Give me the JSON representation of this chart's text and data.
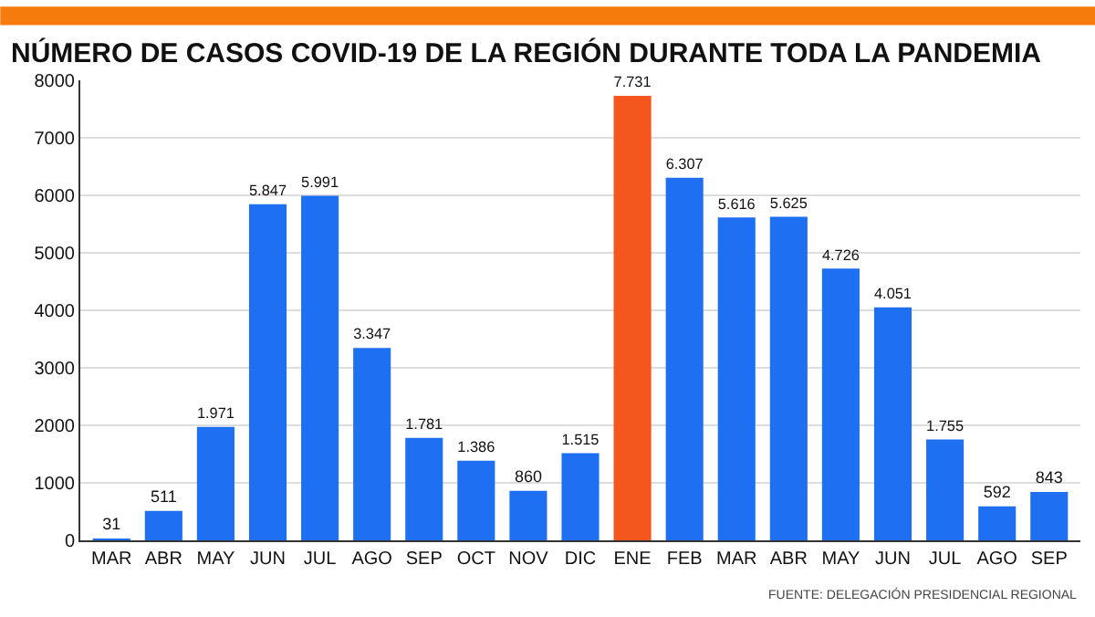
{
  "chart_data": {
    "type": "bar",
    "title": "NÚMERO DE CASOS COVID-19 DE LA REGIÓN DURANTE TODA LA PANDEMIA",
    "categories": [
      "MAR",
      "ABR",
      "MAY",
      "JUN",
      "JUL",
      "AGO",
      "SEP",
      "OCT",
      "NOV",
      "DIC",
      "ENE",
      "FEB",
      "MAR",
      "ABR",
      "MAY",
      "JUN",
      "JUL",
      "AGO",
      "SEP"
    ],
    "values": [
      31,
      511,
      1971,
      5847,
      5991,
      3347,
      1781,
      1386,
      860,
      1515,
      7731,
      6307,
      5616,
      5625,
      4726,
      4051,
      1755,
      592,
      843
    ],
    "value_labels": [
      "31",
      "511",
      "1.971",
      "5.847",
      "5.991",
      "3.347",
      "1.781",
      "1.386",
      "860",
      "1.515",
      "7.731",
      "6.307",
      "5.616",
      "5.625",
      "4.726",
      "4.051",
      "1.755",
      "592",
      "843"
    ],
    "colors": [
      "#1f6ff2",
      "#1f6ff2",
      "#1f6ff2",
      "#1f6ff2",
      "#1f6ff2",
      "#1f6ff2",
      "#1f6ff2",
      "#1f6ff2",
      "#1f6ff2",
      "#1f6ff2",
      "#f5561e",
      "#1f6ff2",
      "#1f6ff2",
      "#1f6ff2",
      "#1f6ff2",
      "#1f6ff2",
      "#1f6ff2",
      "#1f6ff2",
      "#1f6ff2"
    ],
    "ylim": [
      0,
      8000
    ],
    "yticks": [
      0,
      1000,
      2000,
      3000,
      4000,
      5000,
      6000,
      7000,
      8000
    ],
    "grid": "y",
    "annotations": [
      "FUENTE: DELEGACIÓN PRESIDENCIAL REGIONAL"
    ]
  }
}
